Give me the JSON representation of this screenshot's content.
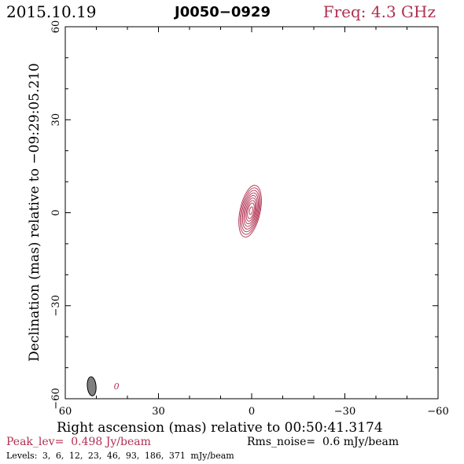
{
  "header": {
    "date": "2015.10.19",
    "source": "J0050−0929",
    "frequency": "Freq: 4.3 GHz"
  },
  "chart_data": {
    "type": "contour",
    "xlabel": "Right ascension (mas) relative to 00:50:41.3174",
    "ylabel": "Declination (mas) relative to −09:29:05.210",
    "xlim": [
      60,
      -60
    ],
    "ylim": [
      -60,
      60
    ],
    "xticks": [
      60,
      30,
      0,
      -30,
      -60
    ],
    "yticks": [
      -60,
      -30,
      0,
      30,
      60
    ],
    "xtick_labels": [
      "60",
      "30",
      "0",
      "−30",
      "−60"
    ],
    "ytick_labels": [
      "−60",
      "−30",
      "0",
      "30",
      "60"
    ],
    "contour_color": "#b03050",
    "component": {
      "x": 0.5,
      "y": 0.5,
      "major": 17,
      "minor": 6.5,
      "pa_deg": -12
    },
    "contour_fractions": [
      1.0,
      0.9,
      0.8,
      0.7,
      0.6,
      0.5,
      0.4,
      0.3,
      0.15
    ],
    "beam": {
      "x": 51.5,
      "y": -56,
      "major": 6.2,
      "minor": 2.8,
      "pa_deg": -5,
      "fill": "#808080"
    },
    "beam_label": "0",
    "beam_label_pos": {
      "x": 43.5,
      "y": -57
    },
    "peak_label": "Peak_lev=",
    "peak_value": "0.498 Jy/beam",
    "rms_label": "Rms_noise=",
    "rms_value": "0.6 mJy/beam",
    "levels_label": "Levels:",
    "levels": [
      "3,",
      "6,",
      "12,",
      "23,",
      "46,",
      "93,",
      "186,",
      "371",
      "mJy/beam"
    ]
  }
}
